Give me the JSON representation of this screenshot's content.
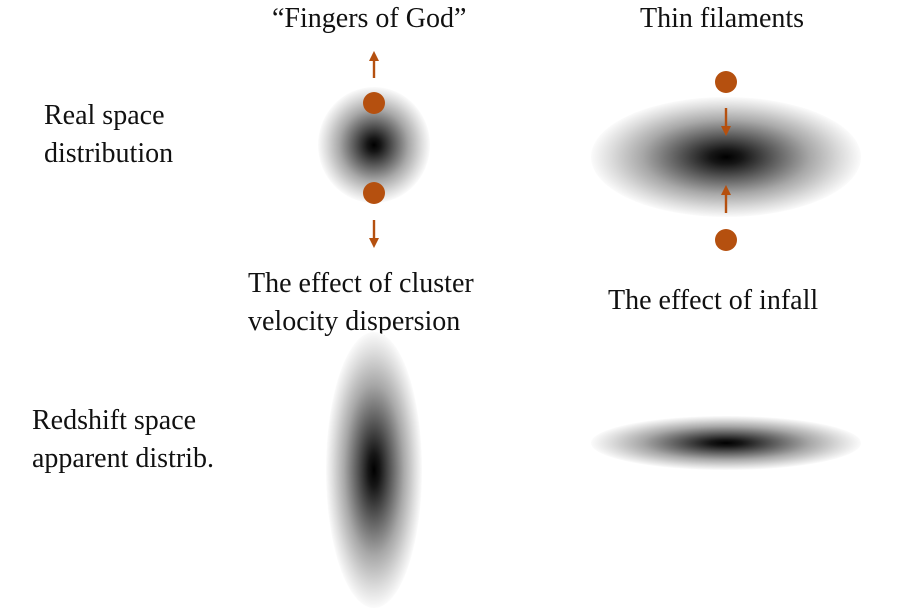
{
  "headings": {
    "fingers_of_god": "“Fingers of God”",
    "thin_filaments": "Thin filaments"
  },
  "row_labels": {
    "real_space": [
      "Real space",
      "distribution"
    ],
    "redshift_space": [
      "Redshift space",
      "apparent distrib."
    ]
  },
  "captions": {
    "cluster_effect": [
      "The effect of cluster",
      "velocity dispersion"
    ],
    "infall_effect": "The effect of infall"
  },
  "colors": {
    "galaxy": "#b5500f",
    "arrow": "#b5500f",
    "blob_core": "#000000",
    "background": "#ffffff"
  },
  "icons": {
    "galaxy": "filled-circle",
    "velocity": "arrow"
  }
}
